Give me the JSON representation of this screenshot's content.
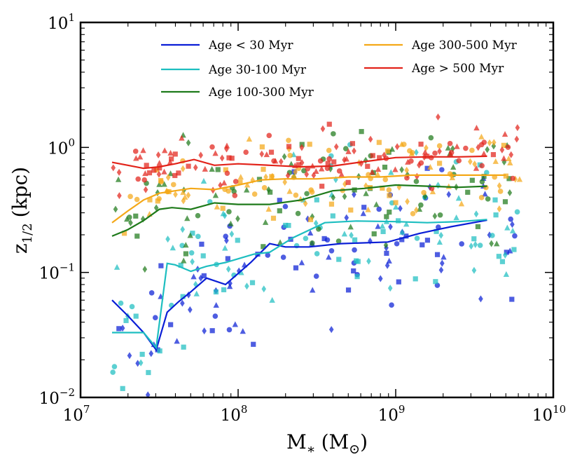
{
  "chart_data": {
    "type": "scatter",
    "title": "",
    "xscale": "log",
    "yscale": "log",
    "xlim": [
      10000000,
      10000000000
    ],
    "ylim": [
      0.01,
      10
    ],
    "xticks": [
      {
        "base": "10",
        "exp": "7"
      },
      {
        "base": "10",
        "exp": "8"
      },
      {
        "base": "10",
        "exp": "9"
      },
      {
        "base": "10",
        "exp": "10"
      }
    ],
    "yticks": [
      {
        "label": "10",
        "exp": "−2",
        "value": 0.01
      },
      {
        "label": "10",
        "exp": "−1",
        "value": 0.1
      },
      {
        "label": "10",
        "exp": "0",
        "value": 1
      },
      {
        "label": "10",
        "exp": "1",
        "value": 10
      }
    ],
    "xlabel": {
      "main": "M",
      "sub": "∗",
      "unit": "(M",
      "unit_sub": "⊙",
      "close": ")"
    },
    "ylabel": {
      "main": "z",
      "sub": "1/2",
      "unit": "(kpc)"
    },
    "series": [
      {
        "name": "Age < 30 Myr",
        "color": "#0a1ed6",
        "logx": [
          7.2,
          7.3,
          7.4,
          7.48,
          7.55,
          7.62,
          7.7,
          7.8,
          7.92,
          8.08,
          8.2,
          8.3,
          8.45,
          8.65,
          8.95,
          9.15,
          9.35,
          9.58
        ],
        "y": [
          0.06,
          0.045,
          0.033,
          0.024,
          0.048,
          0.058,
          0.07,
          0.09,
          0.08,
          0.12,
          0.17,
          0.16,
          0.16,
          0.17,
          0.175,
          0.205,
          0.232,
          0.262
        ]
      },
      {
        "name": "Age 30-100 Myr",
        "color": "#1dbec0",
        "logx": [
          7.2,
          7.3,
          7.4,
          7.48,
          7.55,
          7.6,
          7.7,
          7.8,
          7.92,
          8.1,
          8.2,
          8.35,
          8.55,
          8.75,
          9.0,
          9.2,
          9.4,
          9.58
        ],
        "y": [
          0.033,
          0.033,
          0.033,
          0.025,
          0.118,
          0.115,
          0.102,
          0.112,
          0.12,
          0.14,
          0.145,
          0.19,
          0.25,
          0.258,
          0.255,
          0.25,
          0.255,
          0.265
        ]
      },
      {
        "name": "Age 100-300 Myr",
        "color": "#1e7a1a",
        "logx": [
          7.2,
          7.3,
          7.4,
          7.5,
          7.58,
          7.7,
          7.85,
          8.0,
          8.2,
          8.4,
          8.6,
          8.8,
          9.0,
          9.2,
          9.4,
          9.58
        ],
        "y": [
          0.195,
          0.22,
          0.26,
          0.32,
          0.33,
          0.32,
          0.36,
          0.35,
          0.35,
          0.38,
          0.45,
          0.47,
          0.5,
          0.49,
          0.48,
          0.49
        ]
      },
      {
        "name": "Age 300-500 Myr",
        "color": "#f4a818",
        "logx": [
          7.2,
          7.3,
          7.4,
          7.5,
          7.6,
          7.7,
          7.85,
          8.0,
          8.15,
          8.3,
          8.5,
          8.7,
          8.9,
          9.1,
          9.3,
          9.5,
          9.7
        ],
        "y": [
          0.25,
          0.31,
          0.38,
          0.43,
          0.45,
          0.47,
          0.46,
          0.5,
          0.55,
          0.56,
          0.56,
          0.58,
          0.58,
          0.6,
          0.6,
          0.6,
          0.6
        ]
      },
      {
        "name": "Age > 500 Myr",
        "color": "#e2231a",
        "logx": [
          7.2,
          7.3,
          7.4,
          7.5,
          7.6,
          7.72,
          7.85,
          8.0,
          8.2,
          8.4,
          8.6,
          8.8,
          9.0,
          9.2,
          9.4,
          9.58
        ],
        "y": [
          0.76,
          0.72,
          0.68,
          0.7,
          0.74,
          0.8,
          0.72,
          0.74,
          0.72,
          0.7,
          0.71,
          0.77,
          0.83,
          0.84,
          0.84,
          0.85
        ]
      }
    ],
    "scatter_note": "Individual points (circles, squares, triangles, diamonds) scattered around each series median; marker positions approximated.",
    "legend": {
      "placement": "top",
      "columns": 2
    }
  }
}
